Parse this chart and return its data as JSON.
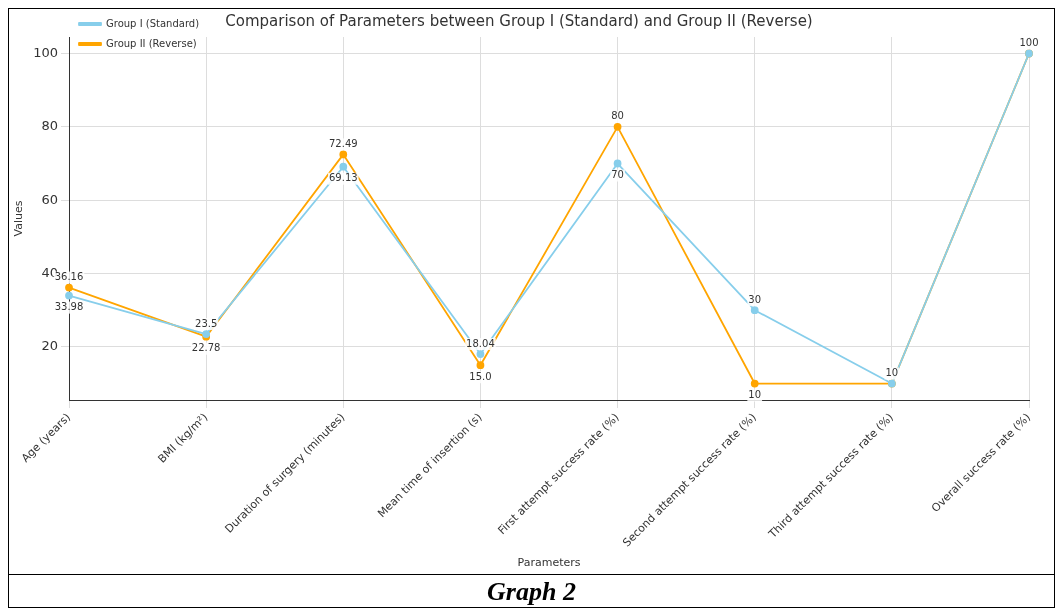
{
  "chart_data": {
    "type": "line",
    "title": "Comparison of Parameters between Group I (Standard) and Group II (Reverse)",
    "xlabel": "Parameters",
    "ylabel": "Values",
    "categories": [
      "Age (years)",
      "BMI (kg/m²)",
      "Duration of surgery (minutes)",
      "Mean time of insertion (s)",
      "First attempt success rate (%)",
      "Second attempt success rate (%)",
      "Third attempt success rate (%)",
      "Overall success rate (%)"
    ],
    "series": [
      {
        "name": "Group I (Standard)",
        "color": "#87ceeb",
        "values": [
          33.98,
          23.5,
          69.13,
          18.04,
          70,
          30,
          10,
          100
        ],
        "value_labels": [
          "33.98",
          "23.5",
          "69.13",
          "18.04",
          "70",
          "30",
          null,
          null
        ]
      },
      {
        "name": "Group II (Reverse)",
        "color": "#ffa500",
        "values": [
          36.16,
          22.78,
          72.49,
          15.0,
          80,
          10,
          10,
          100
        ],
        "value_labels": [
          "36.16",
          "22.78",
          "72.49",
          "15.0",
          "80",
          "10",
          "10",
          "100"
        ]
      }
    ],
    "ylim": [
      5.5,
      104.5
    ],
    "yticks": [
      20,
      40,
      60,
      80,
      100
    ],
    "grid": true,
    "legend": "top left",
    "marker": "circle",
    "line_style": "solid",
    "annotations": [
      "Graph 2"
    ]
  }
}
